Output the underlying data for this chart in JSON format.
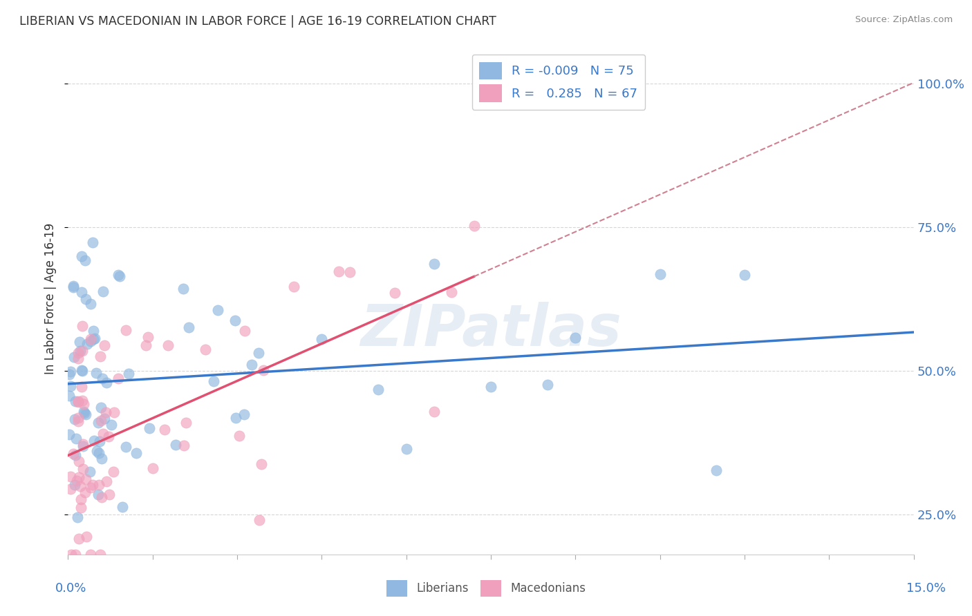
{
  "title": "LIBERIAN VS MACEDONIAN IN LABOR FORCE | AGE 16-19 CORRELATION CHART",
  "source": "Source: ZipAtlas.com",
  "ylabel": "In Labor Force | Age 16-19",
  "xlim": [
    0.0,
    15.0
  ],
  "ylim": [
    18.0,
    107.0
  ],
  "yticks": [
    25.0,
    50.0,
    75.0,
    100.0
  ],
  "ytick_labels": [
    "25.0%",
    "50.0%",
    "75.0%",
    "100.0%"
  ],
  "liberian_R": -0.009,
  "liberian_N": 75,
  "macedonian_R": 0.285,
  "macedonian_N": 67,
  "liberian_color": "#90b8e0",
  "macedonian_color": "#f0a0bc",
  "liberian_line_color": "#3a78c9",
  "macedonian_line_color": "#e05070",
  "dashed_line_color": "#d08090",
  "background_color": "#ffffff",
  "grid_color": "#cccccc",
  "ytick_color": "#3a78c9",
  "xlabel_color": "#3a78c9",
  "title_color": "#333333",
  "source_color": "#888888",
  "watermark_color": "#c8d8ea",
  "legend_label_color": "#3a78c9"
}
